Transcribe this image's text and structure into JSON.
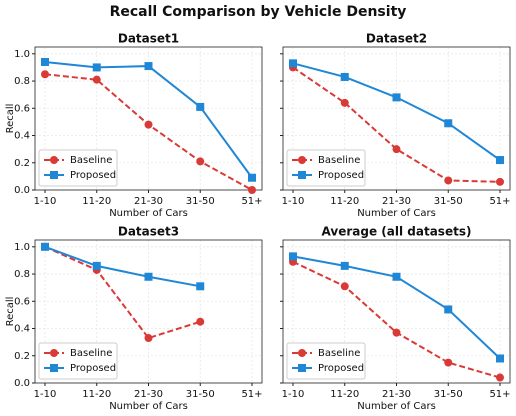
{
  "title": "Recall Comparison by Vehicle Density",
  "chart_data": [
    {
      "type": "line",
      "title": "Dataset1",
      "xlabel": "Number of Cars",
      "ylabel": "Recall",
      "categories": [
        "1-10",
        "11-20",
        "21-30",
        "31-50",
        "51+"
      ],
      "series": [
        {
          "name": "Baseline",
          "color": "#d93a36",
          "values": [
            0.85,
            0.81,
            0.48,
            0.21,
            0.0
          ]
        },
        {
          "name": "Proposed",
          "color": "#1f87d6",
          "values": [
            0.94,
            0.9,
            0.91,
            0.61,
            0.09
          ]
        }
      ],
      "ylim": [
        0,
        1.05
      ],
      "yticks": [
        {
          "value": 0,
          "label": "0.0"
        },
        0.2,
        0.4,
        0.6,
        0.8,
        {
          "value": 1,
          "label": "1.0"
        }
      ],
      "grid": true,
      "legend": "lower left"
    },
    {
      "type": "line",
      "title": "Dataset2",
      "xlabel": "Number of Cars",
      "categories": [
        "1-10",
        "11-20",
        "21-30",
        "31-50",
        "51+"
      ],
      "series": [
        {
          "name": "Baseline",
          "color": "#d93a36",
          "values": [
            0.9,
            0.64,
            0.3,
            0.07,
            0.06
          ]
        },
        {
          "name": "Proposed",
          "color": "#1f87d6",
          "values": [
            0.93,
            0.83,
            0.68,
            0.49,
            0.22
          ]
        }
      ],
      "ylim": [
        0,
        1.05
      ],
      "yticks": [
        0,
        0.2,
        0.4,
        0.6,
        0.8,
        1
      ],
      "grid": true,
      "legend": "lower left"
    },
    {
      "type": "line",
      "title": "Dataset3",
      "xlabel": "Number of Cars",
      "ylabel": "Recall",
      "categories": [
        "1-10",
        "11-20",
        "21-30",
        "31-50",
        "51+"
      ],
      "series": [
        {
          "name": "Baseline",
          "color": "#d93a36",
          "values": [
            1.0,
            0.83,
            0.33,
            0.45,
            null
          ]
        },
        {
          "name": "Proposed",
          "color": "#1f87d6",
          "values": [
            1.0,
            0.86,
            0.78,
            0.71,
            null
          ]
        }
      ],
      "ylim": [
        0,
        1.05
      ],
      "yticks": [
        {
          "value": 0,
          "label": "0.0"
        },
        0.2,
        0.4,
        0.6,
        0.8,
        {
          "value": 1,
          "label": "1.0"
        }
      ],
      "grid": true,
      "legend": "lower left"
    },
    {
      "type": "line",
      "title": "Average (all datasets)",
      "xlabel": "Number of Cars",
      "categories": [
        "1-10",
        "11-20",
        "21-30",
        "31-50",
        "51+"
      ],
      "series": [
        {
          "name": "Baseline",
          "color": "#d93a36",
          "values": [
            0.89,
            0.71,
            0.37,
            0.15,
            0.04
          ]
        },
        {
          "name": "Proposed",
          "color": "#1f87d6",
          "values": [
            0.93,
            0.86,
            0.78,
            0.54,
            0.18
          ]
        }
      ],
      "ylim": [
        0,
        1.05
      ],
      "yticks": [
        0,
        0.2,
        0.4,
        0.6,
        0.8,
        1
      ],
      "grid": true,
      "legend": "lower left"
    }
  ]
}
